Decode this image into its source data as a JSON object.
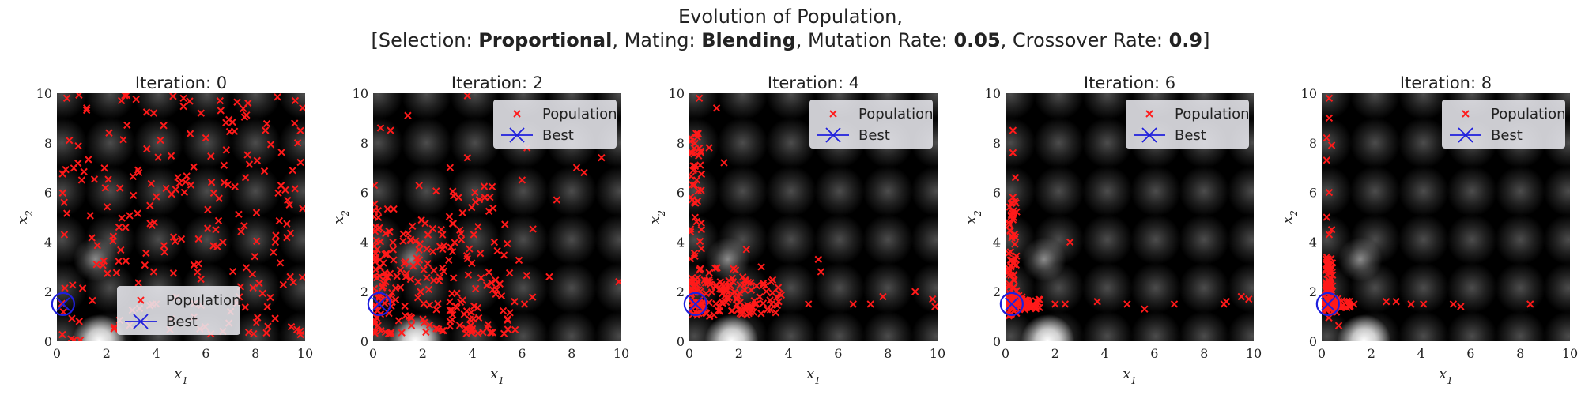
{
  "figure": {
    "title_line1": "Evolution of Population,",
    "l2_open": "[Selection: ",
    "selection": "Proportional",
    "l2_mating": ", Mating: ",
    "mating": "Blending",
    "l2_mut": ", Mutation Rate: ",
    "mutation_rate": "0.05",
    "l2_cross": ", Crossover Rate: ",
    "crossover_rate": "0.9",
    "l2_close": "]"
  },
  "colors": {
    "population": "#ff1a1a",
    "best": "#1f1fdd",
    "background": "#000000"
  },
  "chart_data": [
    {
      "type": "scatter",
      "title_prefix": "Iteration: ",
      "iteration": "0",
      "xlabel": "x1",
      "ylabel": "x2",
      "xlim": [
        0,
        10
      ],
      "ylim": [
        0,
        10
      ],
      "xticks": [
        "0",
        "2",
        "4",
        "6",
        "8",
        "10"
      ],
      "yticks": [
        "0",
        "2",
        "4",
        "6",
        "8",
        "10"
      ],
      "grid": false,
      "legend": "bottom-center",
      "series": [
        {
          "name": "Population",
          "marker": "x",
          "pattern": "uniform",
          "count": 190,
          "seed": 11,
          "points": [
            [
              0.4,
              9.8
            ],
            [
              1.2,
              9.4
            ],
            [
              2.6,
              9.7
            ],
            [
              3.9,
              9.2
            ],
            [
              5.1,
              9.8
            ],
            [
              6.6,
              9.3
            ],
            [
              7.7,
              9.6
            ],
            [
              9.6,
              9.7
            ],
            [
              0.5,
              8.1
            ],
            [
              2.1,
              8.4
            ],
            [
              4.3,
              8.7
            ],
            [
              6.0,
              8.2
            ],
            [
              8.4,
              8.5
            ],
            [
              9.7,
              8.0
            ],
            [
              1.0,
              6.5
            ],
            [
              3.3,
              6.8
            ],
            [
              5.4,
              6.3
            ],
            [
              7.6,
              6.6
            ],
            [
              9.2,
              6.1
            ],
            [
              0.3,
              4.3
            ],
            [
              2.5,
              4.6
            ],
            [
              4.7,
              4.2
            ],
            [
              6.4,
              4.5
            ],
            [
              8.8,
              4.0
            ],
            [
              1.6,
              3.1
            ],
            [
              3.9,
              2.8
            ],
            [
              5.8,
              2.5
            ],
            [
              7.4,
              2.2
            ],
            [
              9.4,
              2.6
            ],
            [
              0.9,
              0.8
            ],
            [
              2.3,
              0.5
            ],
            [
              4.6,
              0.9
            ],
            [
              6.2,
              0.3
            ],
            [
              8.5,
              0.6
            ],
            [
              9.8,
              0.4
            ]
          ]
        },
        {
          "name": "Best",
          "marker": "x-circle",
          "points": [
            [
              0.25,
              1.5
            ]
          ]
        }
      ]
    },
    {
      "type": "scatter",
      "title_prefix": "Iteration: ",
      "iteration": "2",
      "xlabel": "x1",
      "ylabel": "x2",
      "xlim": [
        0,
        10
      ],
      "ylim": [
        0,
        10
      ],
      "xticks": [
        "0",
        "2",
        "4",
        "6",
        "8",
        "10"
      ],
      "yticks": [
        "0",
        "2",
        "4",
        "6",
        "8",
        "10"
      ],
      "grid": false,
      "legend": "top-right",
      "series": [
        {
          "name": "Population",
          "marker": "x",
          "pattern": "cluster-lowleft",
          "count": 240,
          "seed": 23,
          "points": [
            [
              0.3,
              8.6
            ],
            [
              0.7,
              8.5
            ],
            [
              1.4,
              9.1
            ],
            [
              3.8,
              9.9
            ],
            [
              3.8,
              7.4
            ],
            [
              3.1,
              7.0
            ],
            [
              4.1,
              6.0
            ],
            [
              4.5,
              5.8
            ],
            [
              6.0,
              6.5
            ],
            [
              6.2,
              7.8
            ],
            [
              8.2,
              7.0
            ],
            [
              8.5,
              6.8
            ],
            [
              9.2,
              7.4
            ],
            [
              7.4,
              5.7
            ],
            [
              9.9,
              2.4
            ],
            [
              7.1,
              2.6
            ],
            [
              5.7,
              1.6
            ],
            [
              6.1,
              1.5
            ],
            [
              4.0,
              0.5
            ],
            [
              3.1,
              0.8
            ]
          ]
        },
        {
          "name": "Best",
          "marker": "x-circle",
          "points": [
            [
              0.25,
              1.5
            ]
          ]
        }
      ]
    },
    {
      "type": "scatter",
      "title_prefix": "Iteration: ",
      "iteration": "4",
      "xlabel": "x1",
      "ylabel": "x2",
      "xlim": [
        0,
        10
      ],
      "ylim": [
        0,
        10
      ],
      "xticks": [
        "0",
        "2",
        "4",
        "6",
        "8",
        "10"
      ],
      "yticks": [
        "0",
        "2",
        "4",
        "6",
        "8",
        "10"
      ],
      "grid": false,
      "legend": "top-right",
      "series": [
        {
          "name": "Population",
          "marker": "x",
          "pattern": "L-shape",
          "count": 200,
          "seed": 37,
          "points": [
            [
              0.4,
              9.8
            ],
            [
              1.1,
              9.4
            ],
            [
              0.8,
              7.8
            ],
            [
              1.4,
              7.2
            ],
            [
              0.3,
              6.5
            ],
            [
              0.2,
              5.6
            ],
            [
              2.3,
              3.7
            ],
            [
              2.9,
              3.0
            ],
            [
              5.2,
              3.3
            ],
            [
              5.3,
              2.8
            ],
            [
              6.6,
              1.5
            ],
            [
              7.3,
              1.5
            ],
            [
              7.8,
              1.8
            ],
            [
              9.1,
              2.0
            ],
            [
              9.8,
              1.7
            ],
            [
              9.9,
              1.4
            ],
            [
              4.8,
              1.5
            ],
            [
              3.6,
              1.6
            ]
          ]
        },
        {
          "name": "Best",
          "marker": "x-circle",
          "points": [
            [
              0.25,
              1.5
            ]
          ]
        }
      ]
    },
    {
      "type": "scatter",
      "title_prefix": "Iteration: ",
      "iteration": "6",
      "xlabel": "x1",
      "ylabel": "x2",
      "xlim": [
        0,
        10
      ],
      "ylim": [
        0,
        10
      ],
      "xticks": [
        "0",
        "2",
        "4",
        "6",
        "8",
        "10"
      ],
      "yticks": [
        "0",
        "2",
        "4",
        "6",
        "8",
        "10"
      ],
      "grid": false,
      "legend": "top-right",
      "series": [
        {
          "name": "Population",
          "marker": "x",
          "pattern": "L-tight",
          "count": 130,
          "seed": 41,
          "points": [
            [
              0.3,
              8.5
            ],
            [
              0.3,
              7.6
            ],
            [
              0.4,
              6.6
            ],
            [
              0.3,
              5.8
            ],
            [
              0.3,
              4.9
            ],
            [
              0.4,
              4.2
            ],
            [
              2.6,
              4.0
            ],
            [
              0.2,
              3.6
            ],
            [
              3.7,
              1.6
            ],
            [
              4.9,
              1.5
            ],
            [
              5.6,
              1.3
            ],
            [
              6.8,
              1.5
            ],
            [
              8.8,
              1.5
            ],
            [
              8.9,
              1.6
            ],
            [
              9.5,
              1.8
            ],
            [
              9.8,
              1.7
            ],
            [
              2.0,
              1.5
            ],
            [
              2.4,
              1.5
            ]
          ]
        },
        {
          "name": "Best",
          "marker": "x-circle",
          "points": [
            [
              0.25,
              1.5
            ]
          ]
        }
      ]
    },
    {
      "type": "scatter",
      "title_prefix": "Iteration: ",
      "iteration": "8",
      "xlabel": "x1",
      "ylabel": "x2",
      "xlim": [
        0,
        10
      ],
      "ylim": [
        0,
        10
      ],
      "xticks": [
        "0",
        "2",
        "4",
        "6",
        "8",
        "10"
      ],
      "yticks": [
        "0",
        "2",
        "4",
        "6",
        "8",
        "10"
      ],
      "grid": false,
      "legend": "top-right",
      "series": [
        {
          "name": "Population",
          "marker": "x",
          "pattern": "L-tighter",
          "count": 110,
          "seed": 53,
          "points": [
            [
              0.3,
              9.8
            ],
            [
              0.3,
              9.0
            ],
            [
              0.2,
              8.2
            ],
            [
              0.4,
              7.9
            ],
            [
              0.2,
              7.3
            ],
            [
              0.3,
              6.0
            ],
            [
              0.2,
              5.0
            ],
            [
              0.4,
              4.5
            ],
            [
              0.3,
              4.3
            ],
            [
              0.2,
              2.9
            ],
            [
              0.3,
              2.3
            ],
            [
              1.3,
              1.5
            ],
            [
              2.6,
              1.6
            ],
            [
              3.0,
              1.6
            ],
            [
              3.6,
              1.5
            ],
            [
              4.1,
              1.5
            ],
            [
              5.3,
              1.5
            ],
            [
              5.6,
              1.4
            ],
            [
              8.4,
              1.5
            ]
          ]
        },
        {
          "name": "Best",
          "marker": "x-circle",
          "points": [
            [
              0.25,
              1.5
            ]
          ]
        }
      ]
    }
  ]
}
